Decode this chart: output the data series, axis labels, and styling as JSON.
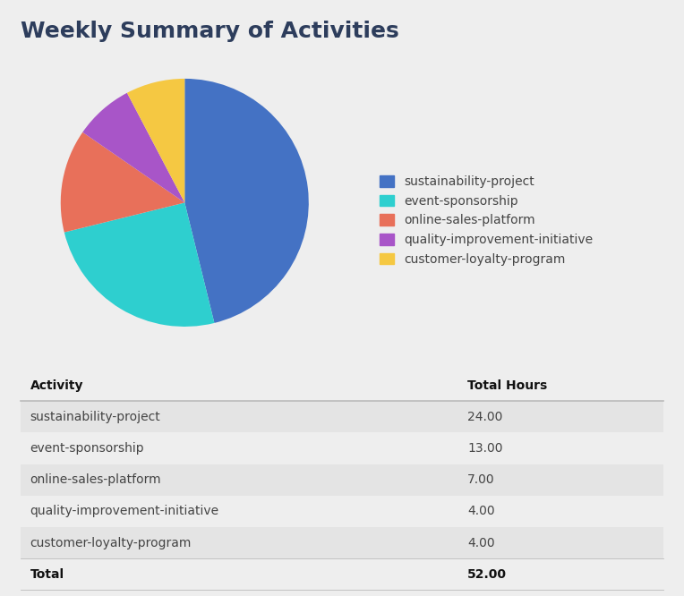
{
  "title": "Weekly Summary of Activities",
  "title_color": "#2d3d5c",
  "background_color": "#eeeeee",
  "pie_data": [
    24.0,
    13.0,
    7.0,
    4.0,
    4.0
  ],
  "pie_labels": [
    "sustainability-project",
    "event-sponsorship",
    "online-sales-platform",
    "quality-improvement-initiative",
    "customer-loyalty-program"
  ],
  "pie_colors": [
    "#4472c4",
    "#2ecfcf",
    "#e8705a",
    "#a855c8",
    "#f5c842"
  ],
  "table_headers": [
    "Activity",
    "Total Hours"
  ],
  "table_rows": [
    [
      "sustainability-project",
      "24.00"
    ],
    [
      "event-sponsorship",
      "13.00"
    ],
    [
      "online-sales-platform",
      "7.00"
    ],
    [
      "quality-improvement-initiative",
      "4.00"
    ],
    [
      "customer-loyalty-program",
      "4.00"
    ]
  ],
  "table_total": [
    "Total",
    "52.00"
  ],
  "row_even_color": "#e4e4e4",
  "row_odd_color": "#eeeeee",
  "text_color": "#444444",
  "bold_color": "#111111",
  "legend_fontsize": 10,
  "title_fontsize": 18,
  "col_split": 0.68,
  "divider_color": "#bbbbbb"
}
